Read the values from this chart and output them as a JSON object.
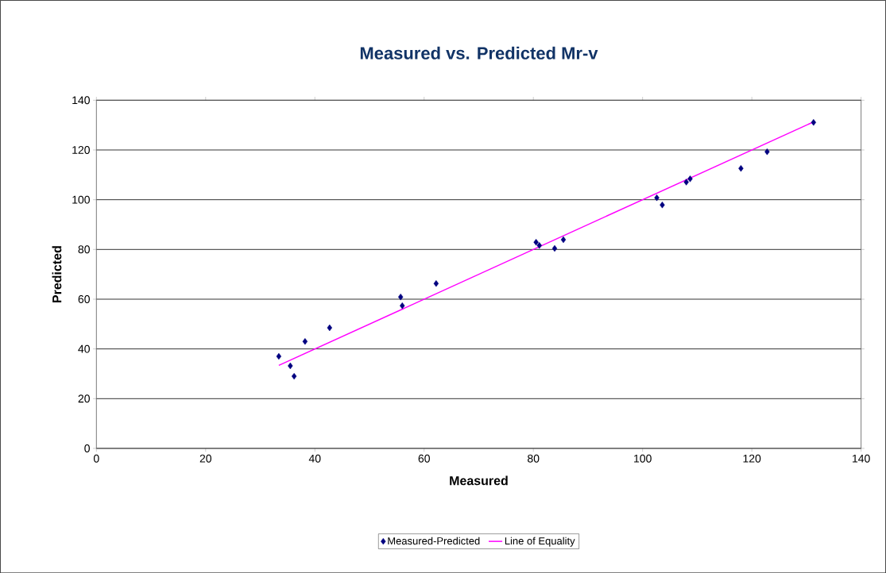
{
  "chart_data": {
    "type": "scatter",
    "title": "Measured vs. Predicted Mr-v",
    "xlabel": "Measured",
    "ylabel": "Predicted",
    "xlim": [
      0,
      140
    ],
    "ylim": [
      0,
      140
    ],
    "xticks": [
      0,
      20,
      40,
      60,
      80,
      100,
      120,
      140
    ],
    "yticks": [
      0,
      20,
      40,
      60,
      80,
      100,
      120,
      140
    ],
    "grid": "y",
    "legend": "bottom",
    "marker": "diamond",
    "series": [
      {
        "name": "Measured-Predicted",
        "color": "#000080",
        "x": [
          33.4,
          35.5,
          36.2,
          38.2,
          42.7,
          55.7,
          56.0,
          62.2,
          80.5,
          81.1,
          83.9,
          85.5,
          102.6,
          103.6,
          108.0,
          108.7,
          118.0,
          122.8,
          131.3
        ],
        "values": [
          37.0,
          33.2,
          29.0,
          43.0,
          48.5,
          60.9,
          57.4,
          66.3,
          82.9,
          81.6,
          80.4,
          83.9,
          100.8,
          97.9,
          107.1,
          108.4,
          112.6,
          119.3,
          131.1
        ]
      },
      {
        "name": "Line of Equality",
        "type": "line",
        "color": "#ff00ff",
        "marker": "none",
        "x": [
          33.4,
          131.3
        ],
        "values": [
          33.4,
          131.3
        ]
      }
    ]
  }
}
